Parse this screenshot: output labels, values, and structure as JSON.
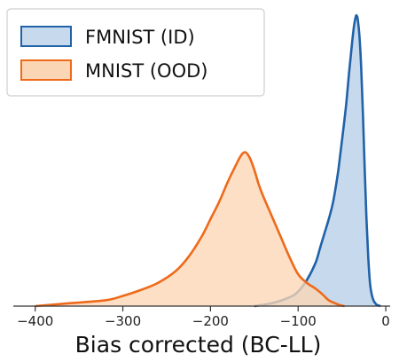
{
  "chart_data": {
    "type": "area",
    "title": "",
    "xlabel": "Bias corrected (BC-LL)",
    "ylabel": "",
    "xlim": [
      -425,
      5
    ],
    "ylim": [
      0,
      1.0
    ],
    "xticks": [
      -400,
      -300,
      -200,
      -100,
      0
    ],
    "xtick_labels": [
      "−400",
      "−300",
      "−200",
      "−100",
      "0"
    ],
    "grid": false,
    "legend_position": "top-left",
    "series": [
      {
        "name": "FMNIST (ID)",
        "line_color": "#2062a8",
        "fill_color": "#c7d9ec",
        "x": [
          -150,
          -130,
          -110,
          -100,
          -90,
          -80,
          -75,
          -70,
          -65,
          -60,
          -55,
          -52,
          -48,
          -45,
          -42,
          -40,
          -38,
          -36,
          -34,
          -33,
          -32,
          -30,
          -28,
          -26,
          -24,
          -22,
          -20,
          -18,
          -16,
          -14,
          -12,
          -10,
          -6
        ],
        "y": [
          0.0,
          0.01,
          0.03,
          0.05,
          0.09,
          0.15,
          0.2,
          0.25,
          0.3,
          0.36,
          0.45,
          0.52,
          0.62,
          0.7,
          0.8,
          0.86,
          0.92,
          0.97,
          1.0,
          1.0,
          0.99,
          0.93,
          0.82,
          0.66,
          0.47,
          0.3,
          0.17,
          0.08,
          0.04,
          0.02,
          0.01,
          0.004,
          0.0
        ]
      },
      {
        "name": "MNIST (OOD)",
        "line_color": "#ee6a1a",
        "fill_color": "#fbd6b5",
        "x": [
          -400,
          -360,
          -320,
          -300,
          -280,
          -260,
          -240,
          -225,
          -210,
          -200,
          -190,
          -180,
          -172,
          -165,
          -160,
          -155,
          -150,
          -145,
          -140,
          -130,
          -120,
          -110,
          -100,
          -90,
          -80,
          -72,
          -65,
          -58,
          -52,
          -47
        ],
        "y": [
          0.0,
          0.01,
          0.02,
          0.035,
          0.055,
          0.08,
          0.12,
          0.17,
          0.24,
          0.3,
          0.36,
          0.43,
          0.48,
          0.52,
          0.53,
          0.51,
          0.47,
          0.42,
          0.38,
          0.31,
          0.24,
          0.17,
          0.11,
          0.08,
          0.06,
          0.04,
          0.02,
          0.01,
          0.003,
          0.0
        ]
      }
    ]
  }
}
